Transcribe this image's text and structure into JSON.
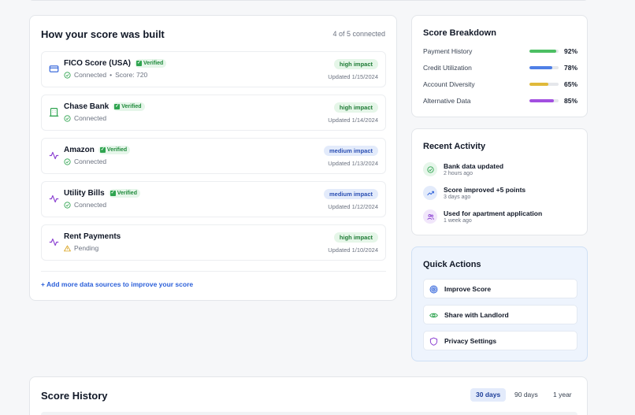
{
  "sources": {
    "title": "How your score was built",
    "connected_count": "4 of 5 connected",
    "verified_label": "Verified",
    "items": [
      {
        "name": "FICO Score (USA)",
        "verified": true,
        "status": "Connected",
        "extra": "Score: 720",
        "impact": "high impact",
        "impact_level": "high",
        "updated": "Updated 1/15/2024",
        "icon": "credit-card-icon"
      },
      {
        "name": "Chase Bank",
        "verified": true,
        "status": "Connected",
        "extra": "",
        "impact": "high impact",
        "impact_level": "high",
        "updated": "Updated 1/14/2024",
        "icon": "bank-icon"
      },
      {
        "name": "Amazon",
        "verified": true,
        "status": "Connected",
        "extra": "",
        "impact": "medium impact",
        "impact_level": "medium",
        "updated": "Updated 1/13/2024",
        "icon": "activity-icon"
      },
      {
        "name": "Utility Bills",
        "verified": true,
        "status": "Connected",
        "extra": "",
        "impact": "medium impact",
        "impact_level": "medium",
        "updated": "Updated 1/12/2024",
        "icon": "activity-icon"
      },
      {
        "name": "Rent Payments",
        "verified": false,
        "status": "Pending",
        "extra": "",
        "impact": "high impact",
        "impact_level": "high",
        "updated": "Updated 1/10/2024",
        "icon": "activity-icon"
      }
    ],
    "add_link": "+ Add more data sources to improve your score"
  },
  "breakdown": {
    "title": "Score Breakdown",
    "items": [
      {
        "label": "Payment History",
        "value": "92%",
        "fraction": 0.92,
        "color": "#4cbf63"
      },
      {
        "label": "Credit Utilization",
        "value": "78%",
        "fraction": 0.78,
        "color": "#4f7fe6"
      },
      {
        "label": "Account Diversity",
        "value": "65%",
        "fraction": 0.65,
        "color": "#e0b93a"
      },
      {
        "label": "Alternative Data",
        "value": "85%",
        "fraction": 0.85,
        "color": "#a24fe0"
      }
    ]
  },
  "activity": {
    "title": "Recent Activity",
    "items": [
      {
        "title": "Bank data updated",
        "time": "2 hours ago",
        "icon": "check-circle-icon",
        "bg": "#e6f6ea",
        "fg": "#2ea44f"
      },
      {
        "title": "Score improved +5 points",
        "time": "3 days ago",
        "icon": "trending-up-icon",
        "bg": "#e3ebfb",
        "fg": "#2b5fd9"
      },
      {
        "title": "Used for apartment application",
        "time": "1 week ago",
        "icon": "users-icon",
        "bg": "#f1e6fb",
        "fg": "#8a3fd1"
      }
    ]
  },
  "quick_actions": {
    "title": "Quick Actions",
    "items": [
      {
        "label": "Improve Score",
        "icon": "target-icon",
        "color": "#2b5fd9"
      },
      {
        "label": "Share with Landlord",
        "icon": "eye-icon",
        "color": "#2ea44f"
      },
      {
        "label": "Privacy Settings",
        "icon": "shield-icon",
        "color": "#8a3fd1"
      }
    ]
  },
  "history": {
    "title": "Score History",
    "ranges": [
      "30 days",
      "90 days",
      "1 year"
    ],
    "active_range": "30 days"
  }
}
